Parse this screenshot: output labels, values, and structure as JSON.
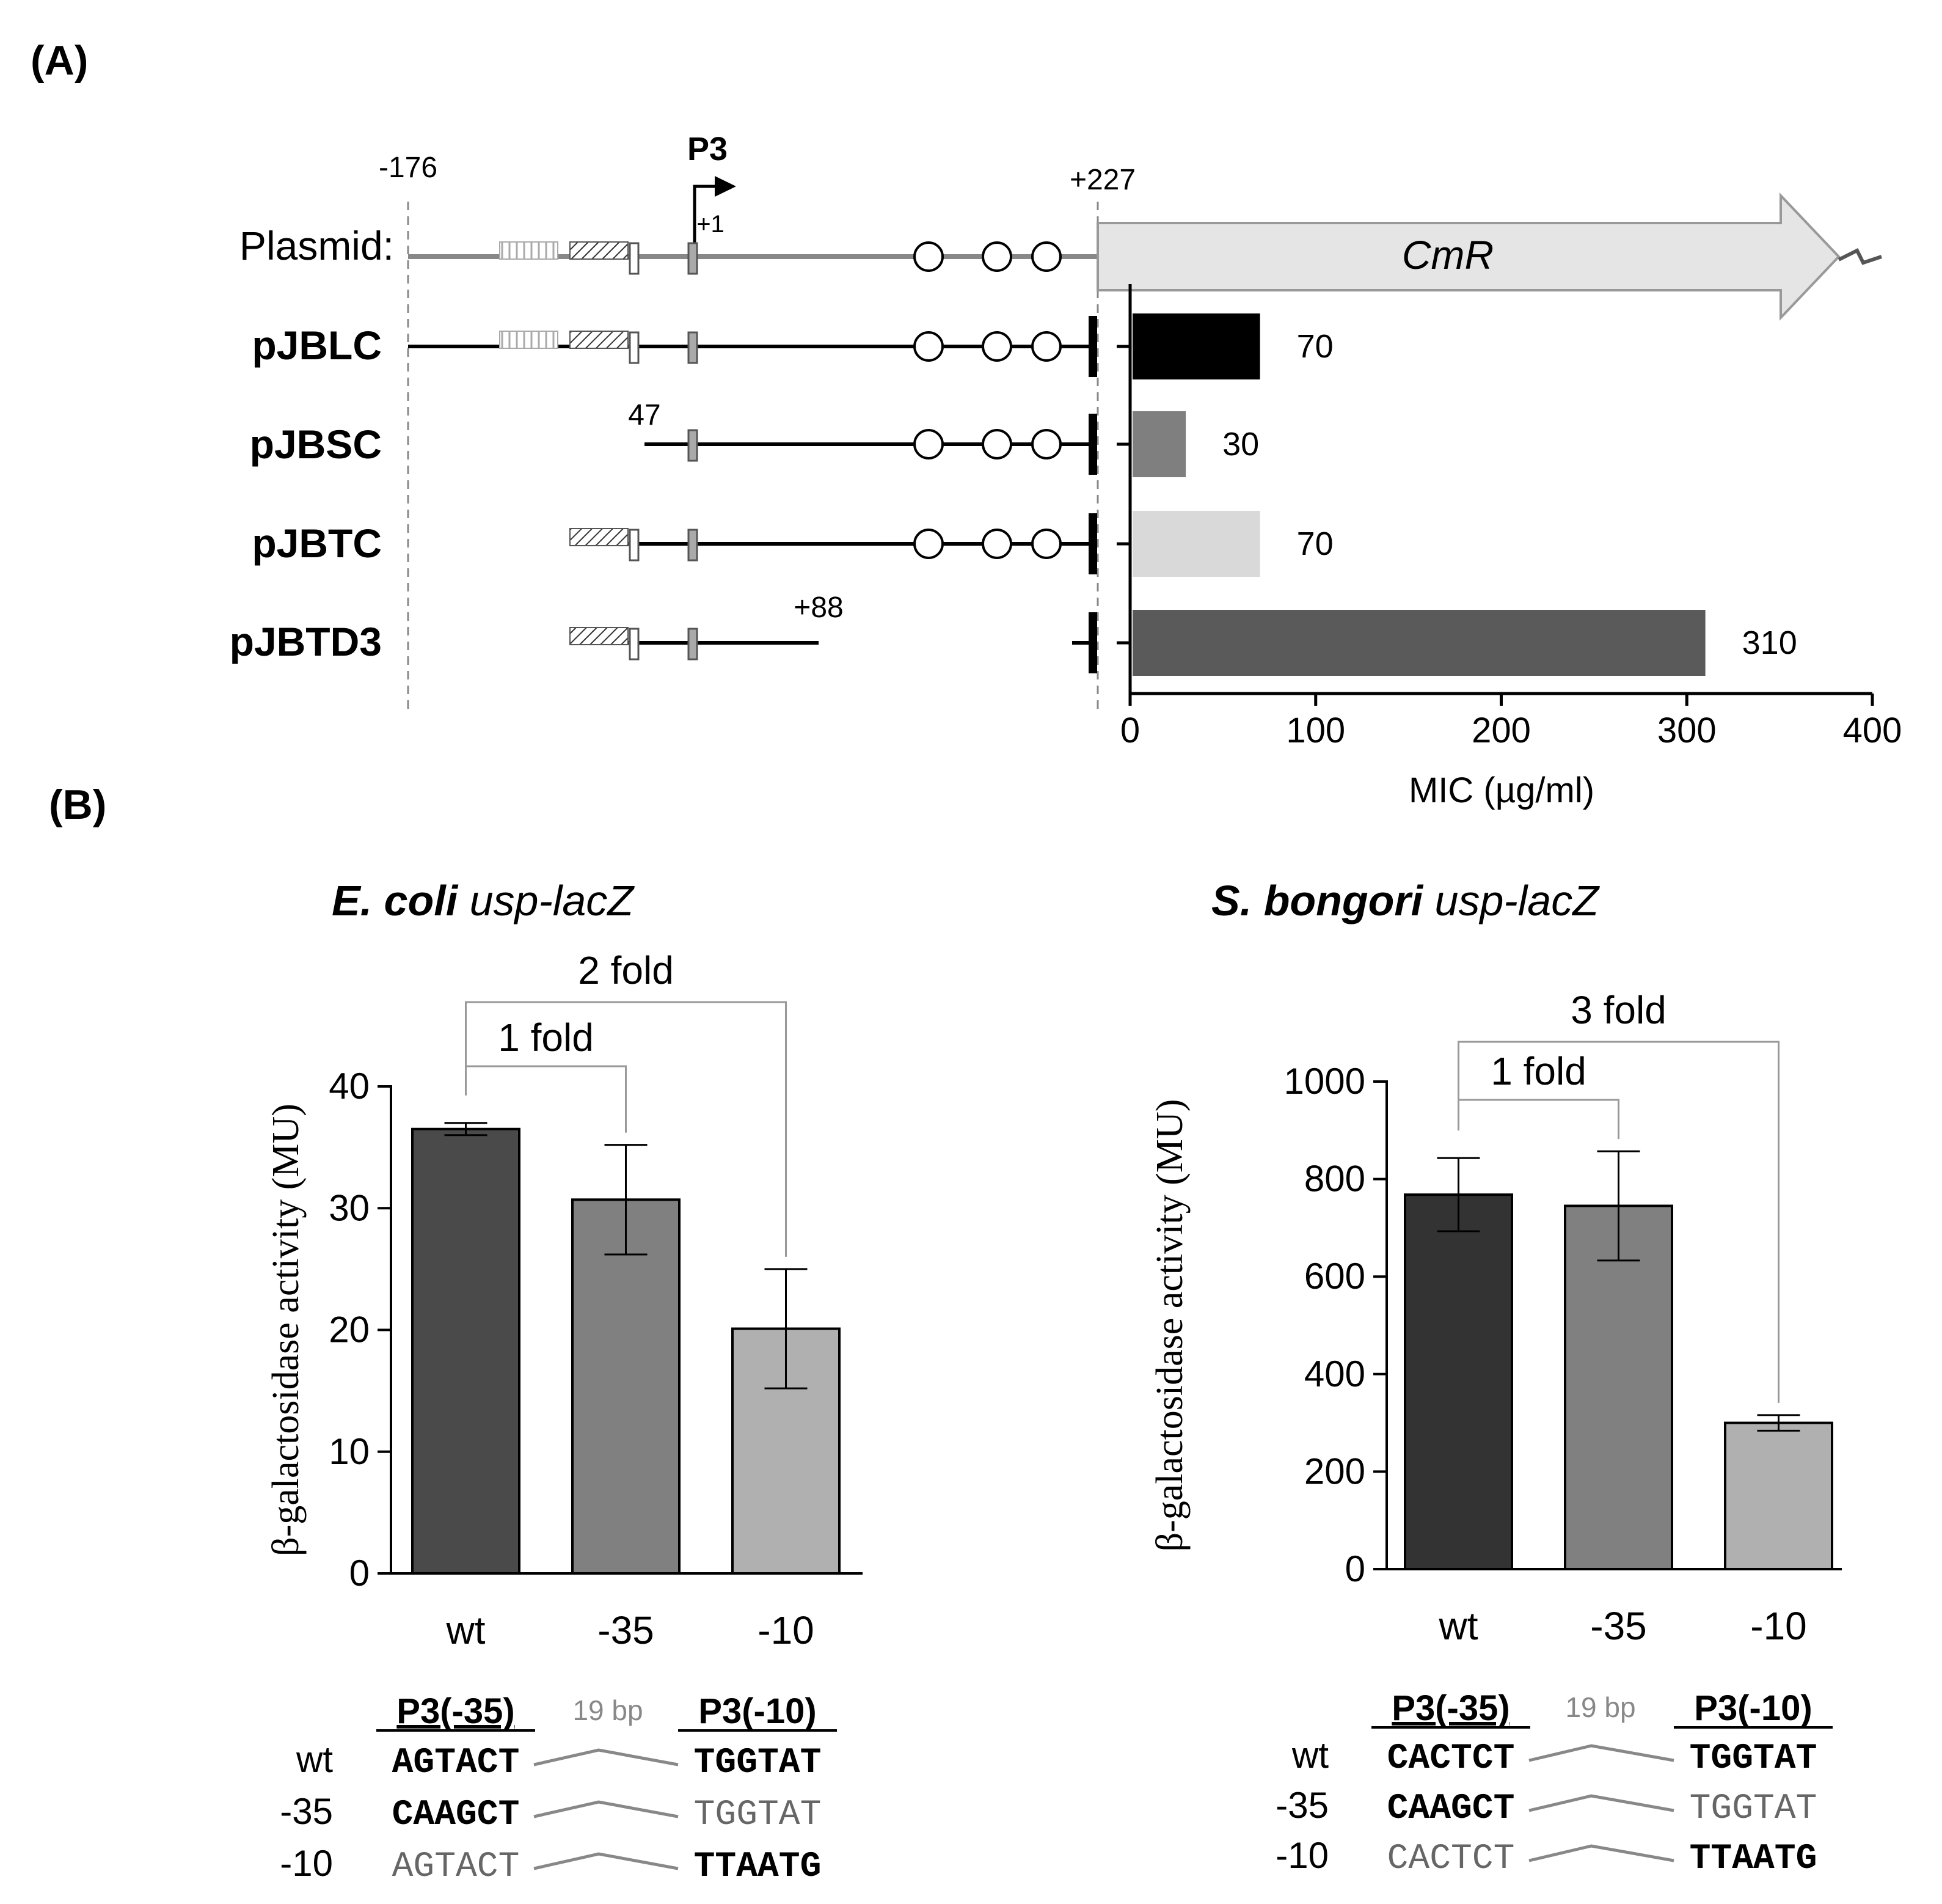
{
  "panel_a": {
    "label": "(A)",
    "positions": {
      "start": "-176",
      "end": "+227",
      "tss": "+1",
      "short_start": "47",
      "trunc_end": "+88"
    },
    "promoter_label": "P3",
    "gene_label": "CmR",
    "rows": [
      {
        "name": "Plasmid:"
      },
      {
        "name": "pJBLC"
      },
      {
        "name": "pJBSC"
      },
      {
        "name": "pJBTC"
      },
      {
        "name": "pJBTD3"
      }
    ],
    "colors": {
      "line": "#000000",
      "plasmid_line": "#888888",
      "arrow_fill": "#e5e5e5"
    }
  },
  "panel_b": {
    "label": "(B)"
  },
  "chart_data": [
    {
      "type": "bar",
      "orientation": "horizontal",
      "categories": [
        "pJBLC",
        "pJBSC",
        "pJBTC",
        "pJBTD3"
      ],
      "values": [
        70,
        30,
        70,
        310
      ],
      "value_labels": [
        "70",
        "30",
        "70",
        "310"
      ],
      "colors": [
        "#000000",
        "#7f7f7f",
        "#d9d9d9",
        "#5a5a5a"
      ],
      "xlabel": "MIC (µg/ml)",
      "xlim": [
        0,
        400
      ],
      "xticks": [
        "0",
        "100",
        "200",
        "300",
        "400"
      ]
    },
    {
      "type": "bar",
      "title_bold": "E. coli",
      "title_rest": " usp-lacZ",
      "categories": [
        "wt",
        "-35",
        "-10"
      ],
      "values": [
        36.5,
        30.7,
        20.1
      ],
      "errors": [
        0.5,
        4.5,
        4.9
      ],
      "colors": [
        "#4a4a4a",
        "#808080",
        "#b0b0b0"
      ],
      "ylabel": "β-galactosidase activity (MU)",
      "ylim": [
        0,
        40
      ],
      "yticks": [
        "0",
        "10",
        "20",
        "30",
        "40"
      ],
      "brackets": [
        {
          "label": "1 fold",
          "from": "wt",
          "to": "-35"
        },
        {
          "label": "2 fold",
          "from": "wt",
          "to": "-10"
        }
      ],
      "sequences": {
        "header_35": "P3(-35)",
        "spacer": "19 bp",
        "header_10": "P3(-10)",
        "rows": [
          {
            "label": "wt",
            "seq35": "AGTACT",
            "seq10": "TGGTAT",
            "bold35": true,
            "bold10": true
          },
          {
            "label": "-35",
            "seq35": "CAAGCT",
            "seq10": "TGGTAT",
            "bold35": true,
            "bold10": false
          },
          {
            "label": "-10",
            "seq35": "AGTACT",
            "seq10": "TTAATG",
            "bold35": false,
            "bold10": true
          }
        ]
      }
    },
    {
      "type": "bar",
      "title_bold": "S. bongori",
      "title_rest": " usp-lacZ",
      "categories": [
        "wt",
        "-35",
        "-10"
      ],
      "values": [
        768,
        745,
        300
      ],
      "errors": [
        75,
        112,
        16
      ],
      "colors": [
        "#333333",
        "#808080",
        "#b0b0b0"
      ],
      "ylabel": "β-galactosidase activity (MU)",
      "ylim": [
        0,
        1000
      ],
      "yticks": [
        "0",
        "200",
        "400",
        "600",
        "800",
        "1000"
      ],
      "brackets": [
        {
          "label": "1 fold",
          "from": "wt",
          "to": "-35"
        },
        {
          "label": "3 fold",
          "from": "wt",
          "to": "-10"
        }
      ],
      "sequences": {
        "header_35": "P3(-35)",
        "spacer": "19 bp",
        "header_10": "P3(-10)",
        "rows": [
          {
            "label": "wt",
            "seq35": "CACTCT",
            "seq10": "TGGTAT",
            "bold35": true,
            "bold10": true
          },
          {
            "label": "-35",
            "seq35": "CAAGCT",
            "seq10": "TGGTAT",
            "bold35": true,
            "bold10": false
          },
          {
            "label": "-10",
            "seq35": "CACTCT",
            "seq10": "TTAATG",
            "bold35": false,
            "bold10": true
          }
        ]
      }
    }
  ]
}
